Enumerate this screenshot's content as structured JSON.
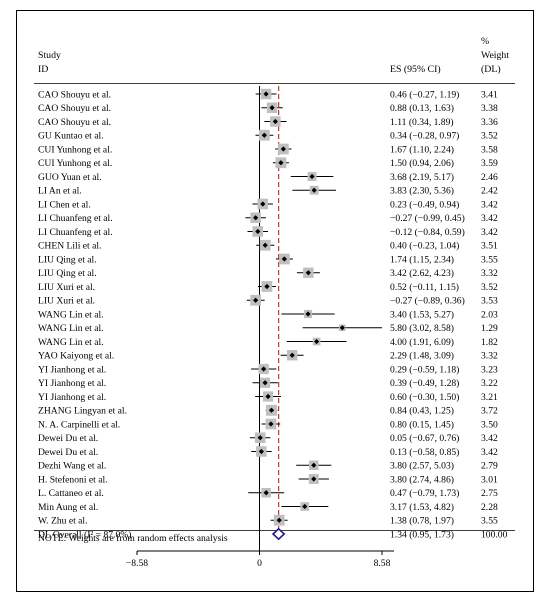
{
  "chart_data": {
    "type": "forest",
    "header": {
      "study_line1": "Study",
      "study_line2": "ID",
      "es_label": "ES (95% CI)",
      "weight_line1": "%",
      "weight_line2": "Weight",
      "weight_line3": "(DL)"
    },
    "studies": [
      {
        "id": "CAO Shouyu et al.",
        "es": 0.46,
        "lo": -0.27,
        "hi": 1.19,
        "ci_text": "0.46 (−0.27, 1.19)",
        "weight": 3.41,
        "weight_text": "3.41"
      },
      {
        "id": "CAO Shouyu et al.",
        "es": 0.88,
        "lo": 0.13,
        "hi": 1.63,
        "ci_text": "0.88 (0.13, 1.63)",
        "weight": 3.38,
        "weight_text": "3.38"
      },
      {
        "id": "CAO Shouyu et al.",
        "es": 1.11,
        "lo": 0.34,
        "hi": 1.89,
        "ci_text": "1.11 (0.34, 1.89)",
        "weight": 3.36,
        "weight_text": "3.36"
      },
      {
        "id": "GU Kuntao et al.",
        "es": 0.34,
        "lo": -0.28,
        "hi": 0.97,
        "ci_text": "0.34 (−0.28, 0.97)",
        "weight": 3.52,
        "weight_text": "3.52"
      },
      {
        "id": "CUI Yunhong et al.",
        "es": 1.67,
        "lo": 1.1,
        "hi": 2.24,
        "ci_text": "1.67 (1.10, 2.24)",
        "weight": 3.58,
        "weight_text": "3.58"
      },
      {
        "id": "CUI Yunhong et al.",
        "es": 1.5,
        "lo": 0.94,
        "hi": 2.06,
        "ci_text": "1.50 (0.94, 2.06)",
        "weight": 3.59,
        "weight_text": "3.59"
      },
      {
        "id": "GUO Yuan et al.",
        "es": 3.68,
        "lo": 2.19,
        "hi": 5.17,
        "ci_text": "3.68 (2.19, 5.17)",
        "weight": 2.46,
        "weight_text": "2.46"
      },
      {
        "id": "LI An et al.",
        "es": 3.83,
        "lo": 2.3,
        "hi": 5.36,
        "ci_text": "3.83 (2.30, 5.36)",
        "weight": 2.42,
        "weight_text": "2.42"
      },
      {
        "id": "LI Chen et al.",
        "es": 0.23,
        "lo": -0.49,
        "hi": 0.94,
        "ci_text": "0.23 (−0.49, 0.94)",
        "weight": 3.42,
        "weight_text": "3.42"
      },
      {
        "id": "LI Chuanfeng et al.",
        "es": -0.27,
        "lo": -0.99,
        "hi": 0.45,
        "ci_text": "−0.27 (−0.99, 0.45)",
        "weight": 3.42,
        "weight_text": "3.42"
      },
      {
        "id": "LI Chuanfeng et al.",
        "es": -0.12,
        "lo": -0.84,
        "hi": 0.59,
        "ci_text": "−0.12 (−0.84, 0.59)",
        "weight": 3.42,
        "weight_text": "3.42"
      },
      {
        "id": "CHEN Lili et al.",
        "es": 0.4,
        "lo": -0.23,
        "hi": 1.04,
        "ci_text": "0.40 (−0.23, 1.04)",
        "weight": 3.51,
        "weight_text": "3.51"
      },
      {
        "id": "LIU Qing et al.",
        "es": 1.74,
        "lo": 1.15,
        "hi": 2.34,
        "ci_text": "1.74 (1.15, 2.34)",
        "weight": 3.55,
        "weight_text": "3.55"
      },
      {
        "id": "LIU Qing et al.",
        "es": 3.42,
        "lo": 2.62,
        "hi": 4.23,
        "ci_text": "3.42 (2.62, 4.23)",
        "weight": 3.32,
        "weight_text": "3.32"
      },
      {
        "id": "LIU Xuri et al.",
        "es": 0.52,
        "lo": -0.11,
        "hi": 1.15,
        "ci_text": "0.52 (−0.11, 1.15)",
        "weight": 3.52,
        "weight_text": "3.52"
      },
      {
        "id": "LIU Xuri et al.",
        "es": -0.27,
        "lo": -0.89,
        "hi": 0.36,
        "ci_text": "−0.27 (−0.89, 0.36)",
        "weight": 3.53,
        "weight_text": "3.53"
      },
      {
        "id": "WANG Lin et al.",
        "es": 3.4,
        "lo": 1.53,
        "hi": 5.27,
        "ci_text": "3.40 (1.53, 5.27)",
        "weight": 2.03,
        "weight_text": "2.03"
      },
      {
        "id": "WANG Lin et al.",
        "es": 5.8,
        "lo": 3.02,
        "hi": 8.58,
        "ci_text": "5.80 (3.02, 8.58)",
        "weight": 1.29,
        "weight_text": "1.29"
      },
      {
        "id": "WANG Lin et al.",
        "es": 4.0,
        "lo": 1.91,
        "hi": 6.09,
        "ci_text": "4.00 (1.91, 6.09)",
        "weight": 1.82,
        "weight_text": "1.82"
      },
      {
        "id": "YAO Kaiyong et al.",
        "es": 2.29,
        "lo": 1.48,
        "hi": 3.09,
        "ci_text": "2.29 (1.48, 3.09)",
        "weight": 3.32,
        "weight_text": "3.32"
      },
      {
        "id": "YI Jianhong et al.",
        "es": 0.29,
        "lo": -0.59,
        "hi": 1.18,
        "ci_text": "0.29 (−0.59, 1.18)",
        "weight": 3.23,
        "weight_text": "3.23"
      },
      {
        "id": "YI Jianhong et al.",
        "es": 0.39,
        "lo": -0.49,
        "hi": 1.28,
        "ci_text": "0.39 (−0.49, 1.28)",
        "weight": 3.22,
        "weight_text": "3.22"
      },
      {
        "id": "YI Jianhong et al.",
        "es": 0.6,
        "lo": -0.3,
        "hi": 1.5,
        "ci_text": "0.60 (−0.30, 1.50)",
        "weight": 3.21,
        "weight_text": "3.21"
      },
      {
        "id": "ZHANG Lingyan et al.",
        "es": 0.84,
        "lo": 0.43,
        "hi": 1.25,
        "ci_text": "0.84 (0.43, 1.25)",
        "weight": 3.72,
        "weight_text": "3.72"
      },
      {
        "id": "N. A. Carpinelli et al.",
        "es": 0.8,
        "lo": 0.15,
        "hi": 1.45,
        "ci_text": "0.80 (0.15, 1.45)",
        "weight": 3.5,
        "weight_text": "3.50"
      },
      {
        "id": "Dewei Du et al.",
        "es": 0.05,
        "lo": -0.67,
        "hi": 0.76,
        "ci_text": "0.05 (−0.67, 0.76)",
        "weight": 3.42,
        "weight_text": "3.42"
      },
      {
        "id": "Dewei Du et al.",
        "es": 0.13,
        "lo": -0.58,
        "hi": 0.85,
        "ci_text": "0.13 (−0.58, 0.85)",
        "weight": 3.42,
        "weight_text": "3.42"
      },
      {
        "id": "Dezhi Wang et al.",
        "es": 3.8,
        "lo": 2.57,
        "hi": 5.03,
        "ci_text": "3.80 (2.57, 5.03)",
        "weight": 2.79,
        "weight_text": "2.79"
      },
      {
        "id": "H. Stefenoni et al.",
        "es": 3.8,
        "lo": 2.74,
        "hi": 4.86,
        "ci_text": "3.80 (2.74, 4.86)",
        "weight": 3.01,
        "weight_text": "3.01"
      },
      {
        "id": "L. Cattaneo et al.",
        "es": 0.47,
        "lo": -0.79,
        "hi": 1.73,
        "ci_text": "0.47 (−0.79, 1.73)",
        "weight": 2.75,
        "weight_text": "2.75"
      },
      {
        "id": "Min Aung et al.",
        "es": 3.17,
        "lo": 1.53,
        "hi": 4.82,
        "ci_text": "3.17 (1.53, 4.82)",
        "weight": 2.28,
        "weight_text": "2.28"
      },
      {
        "id": "W. Zhu et al.",
        "es": 1.38,
        "lo": 0.78,
        "hi": 1.97,
        "ci_text": "1.38 (0.78, 1.97)",
        "weight": 3.55,
        "weight_text": "3.55"
      }
    ],
    "overall": {
      "label": "DL Overall  (I² = 87.0%)",
      "es": 1.34,
      "lo": 0.95,
      "hi": 1.73,
      "ci_text": "1.34 (0.95, 1.73)",
      "weight_text": "100.00"
    },
    "note": "NOTE: Weights are from random effects analysis",
    "x_axis": {
      "range": [
        -8.58,
        8.58
      ],
      "ticks": [
        {
          "value": -8.58,
          "label": "−8.58"
        },
        {
          "value": 0,
          "label": "0"
        },
        {
          "value": 8.58,
          "label": "8.58"
        }
      ]
    },
    "colors": {
      "box": "#bfbfbf",
      "diamond": "#1a1a8c",
      "null_line": "#000000",
      "overall_line": "#c0392b"
    }
  }
}
